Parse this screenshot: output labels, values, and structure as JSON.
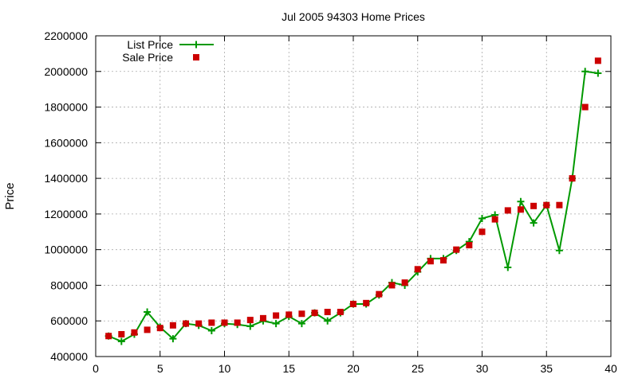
{
  "chart_data": {
    "type": "line",
    "title": "Jul 2005 94303 Home Prices",
    "xlabel": "",
    "ylabel": "Price",
    "xlim": [
      0,
      40
    ],
    "ylim": [
      400000,
      2200000
    ],
    "x_ticks": [
      0,
      5,
      10,
      15,
      20,
      25,
      30,
      35,
      40
    ],
    "y_ticks": [
      400000,
      600000,
      800000,
      1000000,
      1200000,
      1400000,
      1600000,
      1800000,
      2000000,
      2200000
    ],
    "grid": true,
    "legend_position": "top-left",
    "series": [
      {
        "name": "List Price",
        "style": "line-with-plus",
        "color": "#009900",
        "x": [
          1,
          2,
          3,
          4,
          5,
          6,
          7,
          8,
          9,
          10,
          11,
          12,
          13,
          14,
          15,
          16,
          17,
          18,
          19,
          20,
          21,
          22,
          23,
          24,
          25,
          26,
          27,
          28,
          29,
          30,
          31,
          32,
          33,
          34,
          35,
          36,
          37,
          38,
          39
        ],
        "values": [
          515000,
          485000,
          525000,
          650000,
          565000,
          500000,
          585000,
          575000,
          545000,
          585000,
          580000,
          570000,
          600000,
          585000,
          625000,
          585000,
          645000,
          600000,
          645000,
          695000,
          695000,
          745000,
          815000,
          800000,
          875000,
          950000,
          950000,
          995000,
          1045000,
          1175000,
          1195000,
          900000,
          1270000,
          1150000,
          1250000,
          995000,
          1400000,
          2000000,
          1990000
        ]
      },
      {
        "name": "Sale Price",
        "style": "square-points",
        "color": "#cc0000",
        "x": [
          1,
          2,
          3,
          4,
          5,
          6,
          7,
          8,
          9,
          10,
          11,
          12,
          13,
          14,
          15,
          16,
          17,
          18,
          19,
          20,
          21,
          22,
          23,
          24,
          25,
          26,
          27,
          28,
          29,
          30,
          31,
          32,
          33,
          34,
          35,
          36,
          37,
          38,
          39
        ],
        "values": [
          515000,
          525000,
          535000,
          550000,
          560000,
          575000,
          585000,
          585000,
          590000,
          590000,
          590000,
          605000,
          615000,
          630000,
          635000,
          640000,
          645000,
          650000,
          650000,
          695000,
          700000,
          750000,
          800000,
          815000,
          890000,
          935000,
          940000,
          1000000,
          1025000,
          1100000,
          1170000,
          1220000,
          1225000,
          1245000,
          1250000,
          1250000,
          1400000,
          1800000,
          2060000
        ]
      }
    ]
  }
}
